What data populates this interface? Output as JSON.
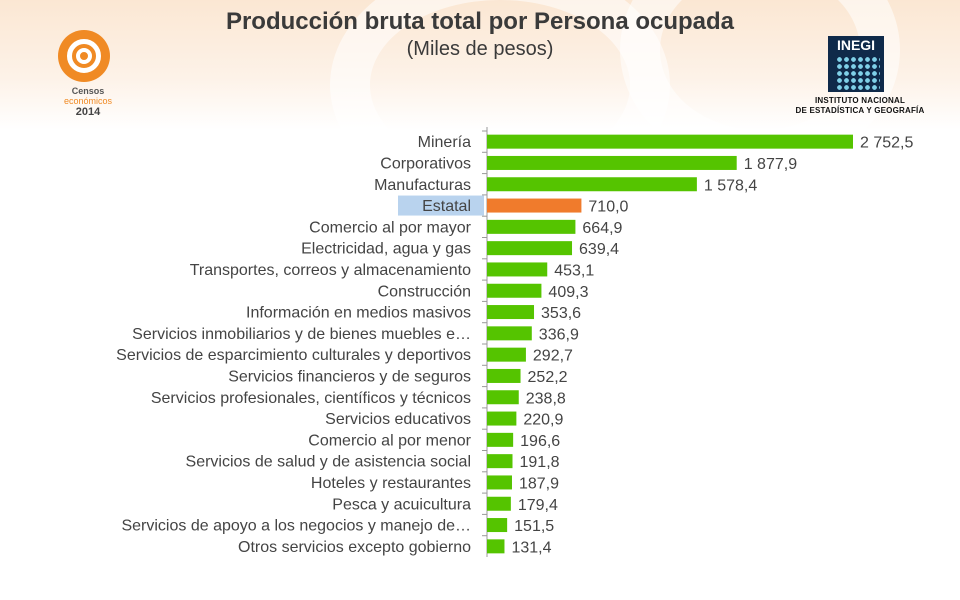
{
  "header": {
    "title": "Producción bruta total por Persona ocupada",
    "subtitle": "(Miles de pesos)"
  },
  "logos": {
    "censos": {
      "line1": "Censos",
      "line2": "económicos",
      "line3": "2014"
    },
    "inegi": {
      "word": "INEGI",
      "name_line1": "INSTITUTO NACIONAL",
      "name_line2": "DE ESTADÍSTICA Y GEOGRAFÍA"
    }
  },
  "colors": {
    "bar": "#55c400",
    "highlight_bar": "#f07b2c",
    "highlight_label_bg": "#b9d3ee",
    "text": "#444444",
    "axis": "#999999"
  },
  "chart_data": {
    "type": "bar",
    "orientation": "horizontal",
    "title": "Producción bruta total por Persona ocupada",
    "subtitle": "(Miles de pesos)",
    "xlim": [
      0,
      2800
    ],
    "grid": false,
    "legend": "none",
    "highlight_category": "Estatal",
    "categories": [
      "Minería",
      "Corporativos",
      "Manufacturas",
      "Estatal",
      "Comercio al por mayor",
      "Electricidad, agua y gas",
      "Transportes, correos y almacenamiento",
      "Construcción",
      "Información en medios masivos",
      "Servicios inmobiliarios y de bienes muebles e…",
      "Servicios de esparcimiento culturales y deportivos",
      "Servicios financieros y de seguros",
      "Servicios profesionales, científicos y técnicos",
      "Servicios educativos",
      "Comercio al por menor",
      "Servicios de salud y de asistencia social",
      "Hoteles y restaurantes",
      "Pesca y acuicultura",
      "Servicios de apoyo a los negocios y manejo de…",
      "Otros servicios excepto gobierno"
    ],
    "values": [
      2752.5,
      1877.9,
      1578.4,
      710.0,
      664.9,
      639.4,
      453.1,
      409.3,
      353.6,
      336.9,
      292.7,
      252.2,
      238.8,
      220.9,
      196.6,
      191.8,
      187.9,
      179.4,
      151.5,
      131.4
    ],
    "value_labels": [
      "2 752,5",
      "1 877,9",
      "1 578,4",
      "710,0",
      "664,9",
      "639,4",
      "453,1",
      "409,3",
      "353,6",
      "336,9",
      "292,7",
      "252,2",
      "238,8",
      "220,9",
      "196,6",
      "191,8",
      "187,9",
      "179,4",
      "151,5",
      "131,4"
    ]
  }
}
